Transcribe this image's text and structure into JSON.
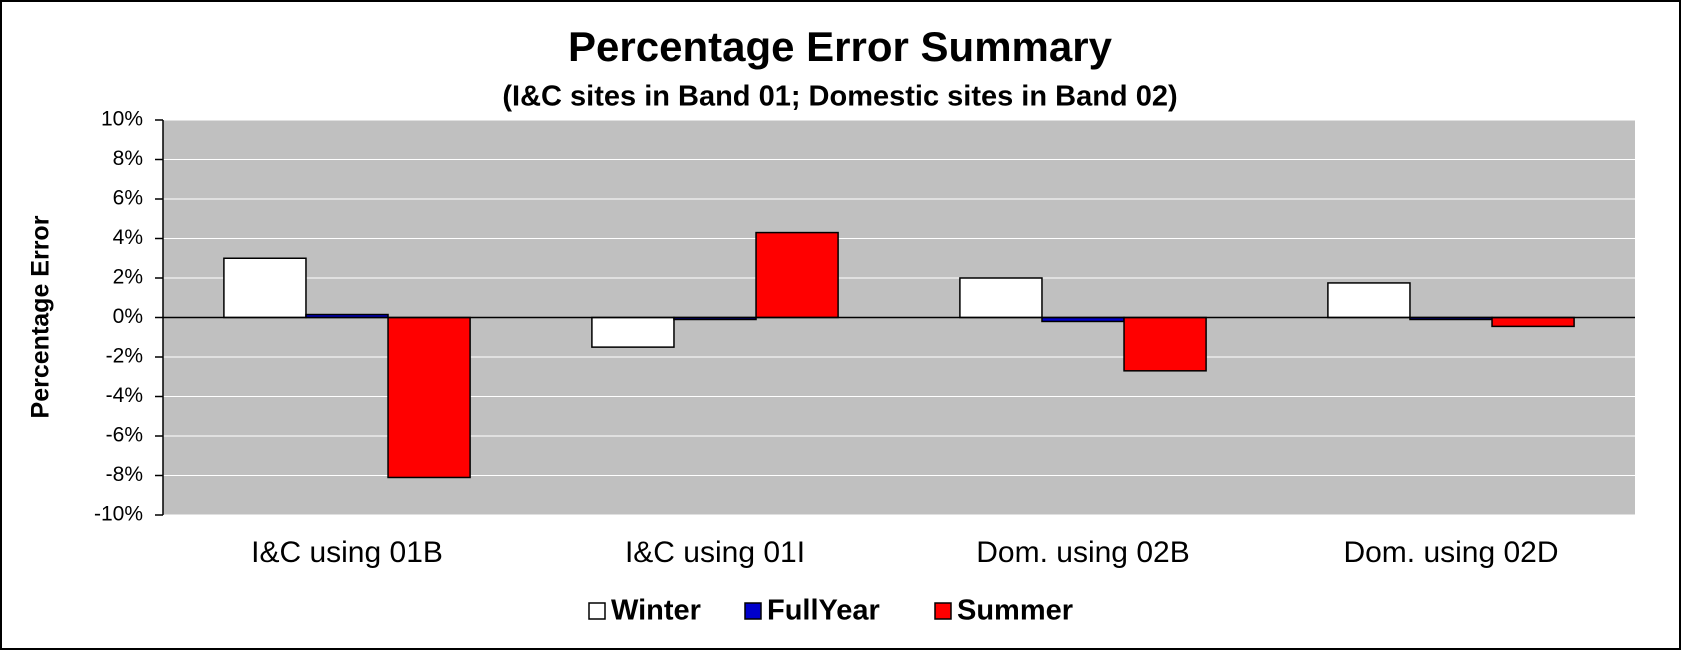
{
  "chart_data": {
    "type": "bar",
    "title": "Percentage Error Summary",
    "subtitle": "(I&C sites in Band 01; Domestic sites in Band 02)",
    "y_label": "Percentage Error",
    "categories": [
      "I&C using 01B",
      "I&C using 01I",
      "Dom. using 02B",
      "Dom. using 02D"
    ],
    "series": [
      {
        "name": "Winter",
        "color": "#ffffff",
        "values": [
          3.0,
          -1.5,
          2.0,
          1.75
        ]
      },
      {
        "name": "FullYear",
        "color": "#0000cc",
        "values": [
          0.15,
          -0.1,
          -0.2,
          -0.1
        ]
      },
      {
        "name": "Summer",
        "color": "#ff0000",
        "values": [
          -8.1,
          4.3,
          -2.7,
          -0.45
        ]
      }
    ],
    "ylim": [
      -10,
      10
    ],
    "yticks": [
      {
        "value": -10,
        "label": "-10%"
      },
      {
        "value": -8,
        "label": "-8%"
      },
      {
        "value": -6,
        "label": "-6%"
      },
      {
        "value": -4,
        "label": "-4%"
      },
      {
        "value": -2,
        "label": "-2%"
      },
      {
        "value": 0,
        "label": "0%"
      },
      {
        "value": 2,
        "label": "2%"
      },
      {
        "value": 4,
        "label": "4%"
      },
      {
        "value": 6,
        "label": "6%"
      },
      {
        "value": 8,
        "label": "8%"
      },
      {
        "value": 10,
        "label": "10%"
      }
    ],
    "grid": true,
    "legend": "bottom"
  }
}
